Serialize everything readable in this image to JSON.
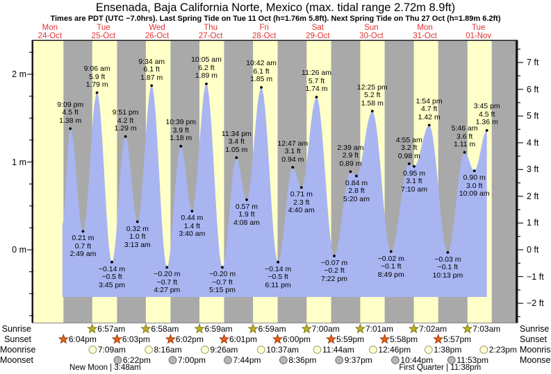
{
  "chart_data": {
    "type": "area",
    "title": "Ensenada, Baja California Norte, Mexico (max. tidal range 2.72m 8.9ft)",
    "subtitle": "Times are PDT (UTC −7.0hrs). Last Spring Tide on Tue 11 Oct (h=1.76m 5.8ft). Next Spring Tide on Thu 27 Oct (h=1.89m 6.2ft)",
    "y_axis_left": {
      "unit": "m",
      "major_ticks": [
        0,
        1,
        2
      ],
      "minor_step": 0.25
    },
    "y_axis_right": {
      "unit": "ft",
      "major_ticks": [
        -2,
        -1,
        0,
        1,
        2,
        3,
        4,
        5,
        6,
        7
      ],
      "minor_step": 0.5
    },
    "row_labels": [
      "Sunrise",
      "Sunset",
      "Moonrise",
      "Moonset"
    ],
    "days": [
      {
        "name": "Mon",
        "date": "24-Oct",
        "sunrise": null,
        "sunset": "6:04pm",
        "moonrise": null,
        "moonset": null,
        "phase": null
      },
      {
        "name": "Tue",
        "date": "25-Oct",
        "sunrise": "6:57am",
        "sunset": "6:03pm",
        "moonrise": "7:09am",
        "moonset": "6:22pm",
        "phase": "New Moon | 3:48am"
      },
      {
        "name": "Wed",
        "date": "26-Oct",
        "sunrise": "6:58am",
        "sunset": "6:02pm",
        "moonrise": "8:16am",
        "moonset": "7:00pm",
        "phase": null
      },
      {
        "name": "Thu",
        "date": "27-Oct",
        "sunrise": "6:59am",
        "sunset": "6:01pm",
        "moonrise": "9:26am",
        "moonset": "7:44pm",
        "phase": null
      },
      {
        "name": "Fri",
        "date": "28-Oct",
        "sunrise": "6:59am",
        "sunset": "6:00pm",
        "moonrise": "10:37am",
        "moonset": "8:36pm",
        "phase": null
      },
      {
        "name": "Sat",
        "date": "29-Oct",
        "sunrise": "7:00am",
        "sunset": "5:59pm",
        "moonrise": "11:44am",
        "moonset": "9:37pm",
        "phase": null
      },
      {
        "name": "Sun",
        "date": "30-Oct",
        "sunrise": "7:01am",
        "sunset": "5:58pm",
        "moonrise": "12:46pm",
        "moonset": "10:44pm",
        "phase": null
      },
      {
        "name": "Mon",
        "date": "31-Oct",
        "sunrise": "7:02am",
        "sunset": "5:57pm",
        "moonrise": "1:38pm",
        "moonset": "11:53pm",
        "phase": "First Quarter | 11:38pm"
      },
      {
        "name": "Tue",
        "date": "01-Nov",
        "sunrise": "7:03am",
        "sunset": null,
        "moonrise": "2:23pm",
        "moonset": null,
        "phase": null
      }
    ],
    "tide_events": [
      {
        "day": 0,
        "time": "9:09 pm",
        "m": 1.38,
        "ft": 4.5,
        "type": "high"
      },
      {
        "day": 1,
        "time": "2:49 am",
        "m": 0.21,
        "ft": 0.7,
        "type": "low"
      },
      {
        "day": 1,
        "time": "9:06 am",
        "m": 1.79,
        "ft": 5.9,
        "type": "high"
      },
      {
        "day": 1,
        "time": "3:45 pm",
        "m": -0.14,
        "ft": -0.5,
        "type": "low"
      },
      {
        "day": 1,
        "time": "9:51 pm",
        "m": 1.29,
        "ft": 4.2,
        "type": "high"
      },
      {
        "day": 2,
        "time": "3:13 am",
        "m": 0.32,
        "ft": 1.0,
        "type": "low"
      },
      {
        "day": 2,
        "time": "9:34 am",
        "m": 1.87,
        "ft": 6.1,
        "type": "high"
      },
      {
        "day": 2,
        "time": "4:27 pm",
        "m": -0.2,
        "ft": -0.7,
        "type": "low"
      },
      {
        "day": 2,
        "time": "10:39 pm",
        "m": 1.18,
        "ft": 3.9,
        "type": "high"
      },
      {
        "day": 3,
        "time": "3:40 am",
        "m": 0.44,
        "ft": 1.4,
        "type": "low"
      },
      {
        "day": 3,
        "time": "10:05 am",
        "m": 1.89,
        "ft": 6.2,
        "type": "high"
      },
      {
        "day": 3,
        "time": "5:15 pm",
        "m": -0.2,
        "ft": -0.7,
        "type": "low"
      },
      {
        "day": 3,
        "time": "11:34 pm",
        "m": 1.05,
        "ft": 3.4,
        "type": "high"
      },
      {
        "day": 4,
        "time": "4:08 am",
        "m": 0.57,
        "ft": 1.9,
        "type": "low"
      },
      {
        "day": 4,
        "time": "10:42 am",
        "m": 1.85,
        "ft": 6.1,
        "type": "high"
      },
      {
        "day": 4,
        "time": "6:11 pm",
        "m": -0.14,
        "ft": -0.5,
        "type": "low"
      },
      {
        "day": 5,
        "time": "12:47 am",
        "m": 0.94,
        "ft": 3.1,
        "type": "high"
      },
      {
        "day": 5,
        "time": "4:40 am",
        "m": 0.71,
        "ft": 2.3,
        "type": "low"
      },
      {
        "day": 5,
        "time": "11:26 am",
        "m": 1.74,
        "ft": 5.7,
        "type": "high"
      },
      {
        "day": 5,
        "time": "7:22 pm",
        "m": -0.07,
        "ft": -0.2,
        "type": "low"
      },
      {
        "day": 6,
        "time": "2:39 am",
        "m": 0.89,
        "ft": 2.9,
        "type": "high"
      },
      {
        "day": 6,
        "time": "5:20 am",
        "m": 0.84,
        "ft": 2.8,
        "type": "low"
      },
      {
        "day": 6,
        "time": "12:25 pm",
        "m": 1.58,
        "ft": 5.2,
        "type": "high"
      },
      {
        "day": 6,
        "time": "8:49 pm",
        "m": -0.02,
        "ft": -0.1,
        "type": "low"
      },
      {
        "day": 7,
        "time": "4:55 am",
        "m": 0.98,
        "ft": 3.2,
        "type": "high"
      },
      {
        "day": 7,
        "time": "7:10 am",
        "m": 0.95,
        "ft": 3.1,
        "type": "low"
      },
      {
        "day": 7,
        "time": "1:54 pm",
        "m": 1.42,
        "ft": 4.7,
        "type": "high"
      },
      {
        "day": 7,
        "time": "10:13 pm",
        "m": -0.03,
        "ft": -0.1,
        "type": "low"
      },
      {
        "day": 8,
        "time": "5:46 am",
        "m": 1.11,
        "ft": 3.6,
        "type": "high"
      },
      {
        "day": 8,
        "time": "10:09 am",
        "m": 0.9,
        "ft": 3.0,
        "type": "low"
      },
      {
        "day": 8,
        "time": "3:45 pm",
        "m": 1.36,
        "ft": 4.5,
        "type": "high"
      }
    ],
    "colors": {
      "day_band": "#ffffc8",
      "night_band": "#a9a9a9",
      "tide_fill": "#a9b5f1",
      "day_label_red": "#e03030",
      "axis": "#1a1a1a",
      "sunrise_star": "#c3b224",
      "sunset_star": "#e86118",
      "moonrise_circle": "#ffffd6",
      "moonset_circle": "#b6b6b6"
    }
  }
}
